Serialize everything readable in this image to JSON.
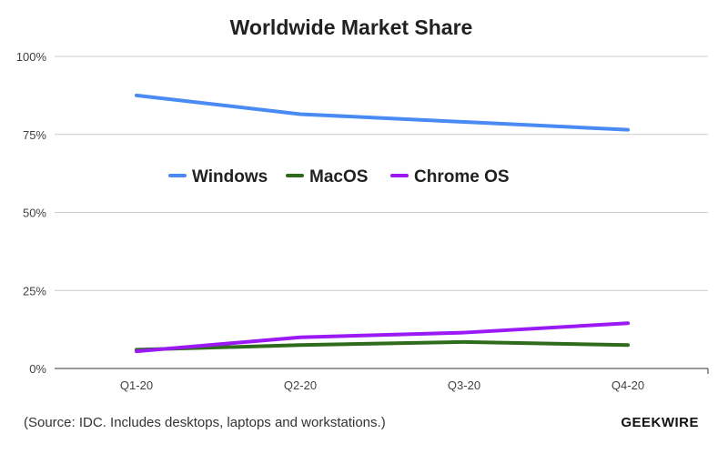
{
  "chart_data": {
    "type": "line",
    "title": "Worldwide Market Share",
    "categories": [
      "Q1-20",
      "Q2-20",
      "Q3-20",
      "Q4-20"
    ],
    "series": [
      {
        "name": "Windows",
        "color": "#4a8af4",
        "values": [
          87.5,
          81.5,
          79.0,
          76.5
        ]
      },
      {
        "name": "MacOS",
        "color": "#2e6b1a",
        "values": [
          6.0,
          7.5,
          8.5,
          7.5
        ]
      },
      {
        "name": "Chrome OS",
        "color": "#9b19f5",
        "values": [
          5.5,
          10.0,
          11.5,
          14.5
        ]
      }
    ],
    "ylim": [
      0,
      100
    ],
    "yticks": [
      0,
      25,
      50,
      75,
      100
    ],
    "ytick_labels": [
      "0%",
      "25%",
      "50%",
      "75%",
      "100%"
    ],
    "grid": true,
    "legend": "upper-center"
  },
  "footer": {
    "source": "(Source: IDC. Includes desktops, laptops and workstations.)",
    "brand": "GEEKWIRE"
  }
}
